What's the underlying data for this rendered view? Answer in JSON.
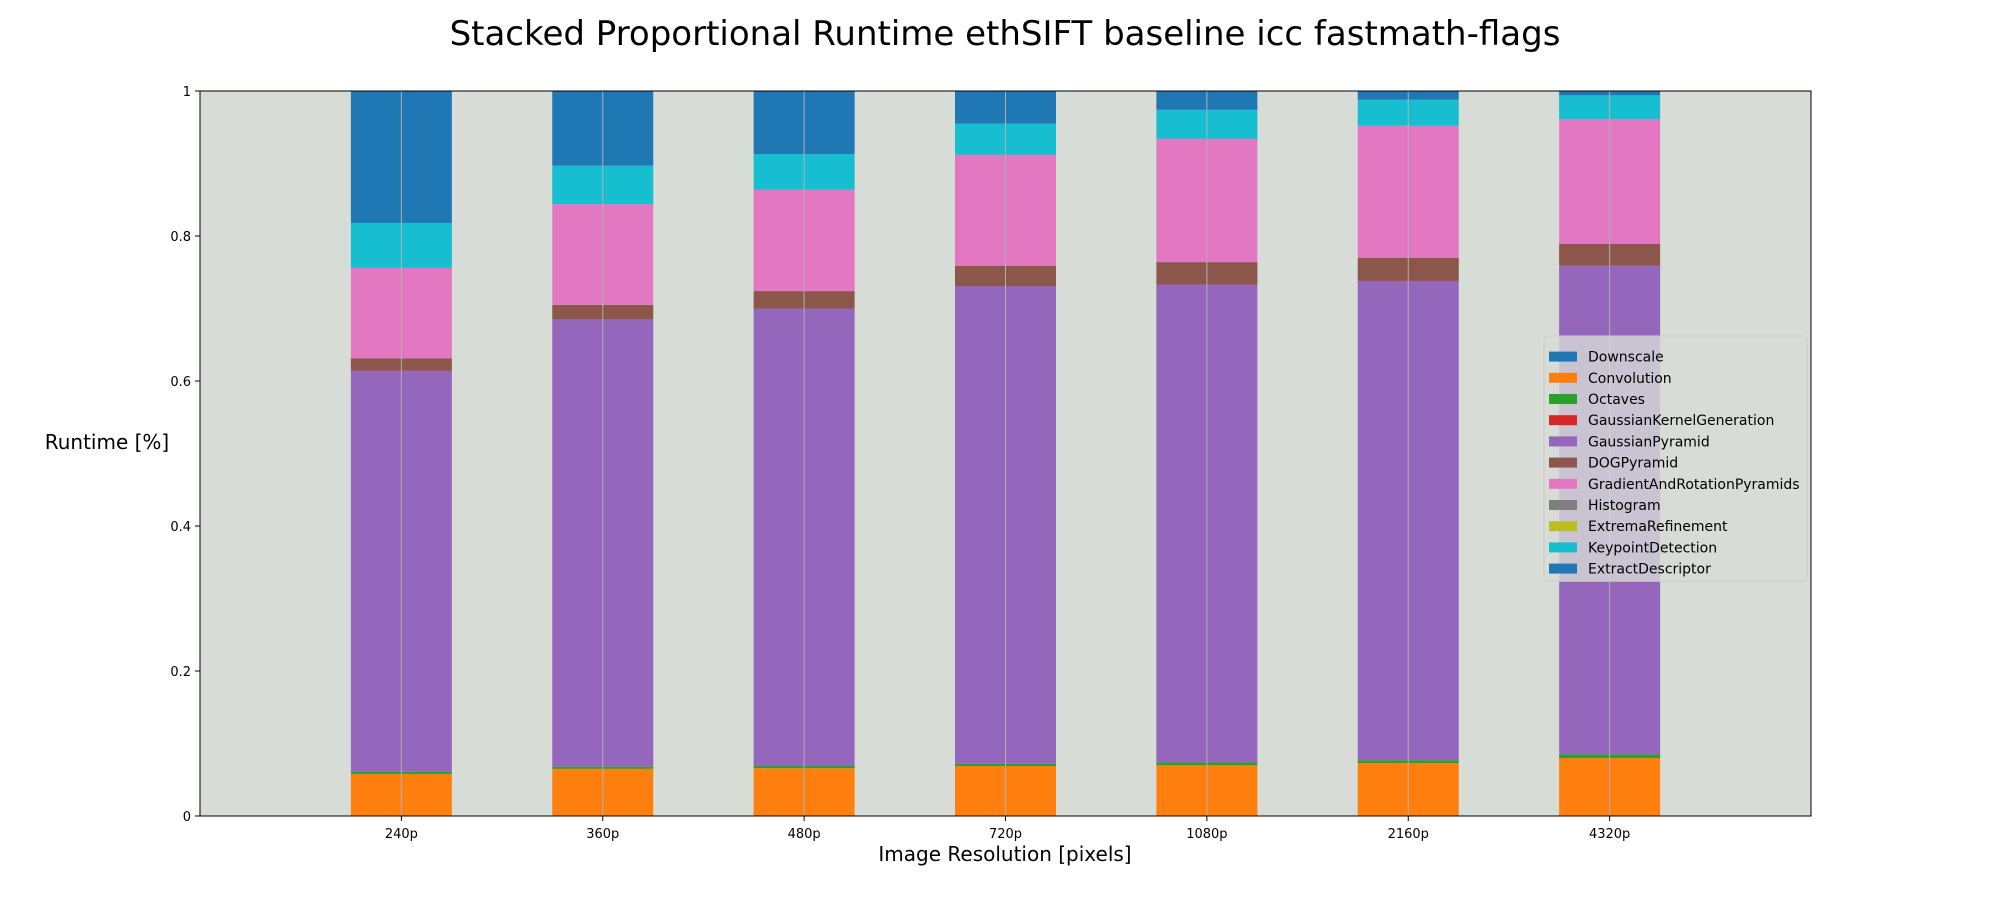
{
  "chart_data": {
    "type": "bar",
    "stacked": true,
    "title": "Stacked Proportional Runtime ethSIFT baseline icc fastmath-flags",
    "xlabel": "Image Resolution [pixels]",
    "ylabel": "Runtime [%]",
    "ylim": [
      0,
      1
    ],
    "yticks": [
      "0",
      "0.2",
      "0.4",
      "0.6",
      "0.8",
      "1"
    ],
    "grid": "vertical",
    "legend_position": "right",
    "background_color": "#d7dcd7",
    "categories": [
      "240p",
      "360p",
      "480p",
      "720p",
      "1080p",
      "2160p",
      "4320p"
    ],
    "series": [
      {
        "name": "Downscale",
        "color": "#1f77b4",
        "values": [
          0,
          0,
          0,
          0,
          0,
          0,
          0
        ]
      },
      {
        "name": "Convolution",
        "color": "#ff7f0e",
        "values": [
          0.058,
          0.065,
          0.066,
          0.069,
          0.07,
          0.073,
          0.08
        ]
      },
      {
        "name": "Octaves",
        "color": "#2ca02c",
        "values": [
          0.003,
          0.003,
          0.003,
          0.003,
          0.004,
          0.004,
          0.005
        ]
      },
      {
        "name": "GaussianKernelGeneration",
        "color": "#d62728",
        "values": [
          0,
          0,
          0,
          0,
          0,
          0,
          0
        ]
      },
      {
        "name": "GaussianPyramid",
        "color": "#9467bd",
        "values": [
          0.553,
          0.617,
          0.631,
          0.659,
          0.659,
          0.661,
          0.674
        ]
      },
      {
        "name": "DOGPyramid",
        "color": "#8c564b",
        "values": [
          0.017,
          0.02,
          0.024,
          0.028,
          0.031,
          0.032,
          0.03
        ]
      },
      {
        "name": "GradientAndRotationPyramids",
        "color": "#e377c2",
        "values": [
          0.125,
          0.139,
          0.14,
          0.153,
          0.17,
          0.182,
          0.172
        ]
      },
      {
        "name": "Histogram",
        "color": "#7f7f7f",
        "values": [
          0,
          0,
          0,
          0,
          0,
          0,
          0
        ]
      },
      {
        "name": "ExtremaRefinement",
        "color": "#bcbd22",
        "values": [
          0,
          0,
          0,
          0,
          0,
          0,
          0
        ]
      },
      {
        "name": "KeypointDetection",
        "color": "#17becf",
        "values": [
          0.062,
          0.053,
          0.049,
          0.043,
          0.04,
          0.036,
          0.033
        ]
      },
      {
        "name": "ExtractDescriptor",
        "color": "#1f77b4",
        "values": [
          0.182,
          0.103,
          0.087,
          0.045,
          0.026,
          0.012,
          0.006
        ]
      }
    ]
  }
}
